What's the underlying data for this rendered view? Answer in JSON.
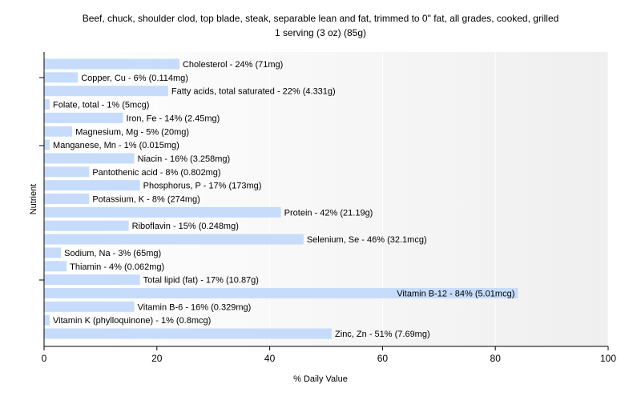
{
  "chart_data": {
    "type": "bar",
    "orientation": "horizontal",
    "title": "Beef, chuck, shoulder clod, top blade, steak, separable lean and fat, trimmed to 0\" fat, all grades, cooked, grilled",
    "subtitle": "1 serving (3 oz) (85g)",
    "xlabel": "% Daily Value",
    "ylabel": "Nutrient",
    "xlim": [
      0,
      100
    ],
    "xticks": [
      0,
      20,
      40,
      60,
      80,
      100
    ],
    "grid": true,
    "bar_color": "#c6dcfa",
    "categories": [
      "Cholesterol",
      "Copper, Cu",
      "Fatty acids, total saturated",
      "Folate, total",
      "Iron, Fe",
      "Magnesium, Mg",
      "Manganese, Mn",
      "Niacin",
      "Pantothenic acid",
      "Phosphorus, P",
      "Potassium, K",
      "Protein",
      "Riboflavin",
      "Selenium, Se",
      "Sodium, Na",
      "Thiamin",
      "Total lipid (fat)",
      "Vitamin B-12",
      "Vitamin B-6",
      "Vitamin K (phylloquinone)",
      "Zinc, Zn"
    ],
    "values": [
      24,
      6,
      22,
      1,
      14,
      5,
      1,
      16,
      8,
      17,
      8,
      42,
      15,
      46,
      3,
      4,
      17,
      84,
      16,
      1,
      51
    ],
    "labels": [
      "Cholesterol - 24% (71mg)",
      "Copper, Cu - 6% (0.114mg)",
      "Fatty acids, total saturated - 22% (4.331g)",
      "Folate, total - 1% (5mcg)",
      "Iron, Fe - 14% (2.45mg)",
      "Magnesium, Mg - 5% (20mg)",
      "Manganese, Mn - 1% (0.015mg)",
      "Niacin - 16% (3.258mg)",
      "Pantothenic acid - 8% (0.802mg)",
      "Phosphorus, P - 17% (173mg)",
      "Potassium, K - 8% (274mg)",
      "Protein - 42% (21.19g)",
      "Riboflavin - 15% (0.248mg)",
      "Selenium, Se - 46% (32.1mcg)",
      "Sodium, Na - 3% (65mg)",
      "Thiamin - 4% (0.062mg)",
      "Total lipid (fat) - 17% (10.87g)",
      "Vitamin B-12 - 84% (5.01mcg)",
      "Vitamin B-6 - 16% (0.329mg)",
      "Vitamin K (phylloquinone) - 1% (0.8mcg)",
      "Zinc, Zn - 51% (7.69mg)"
    ]
  }
}
